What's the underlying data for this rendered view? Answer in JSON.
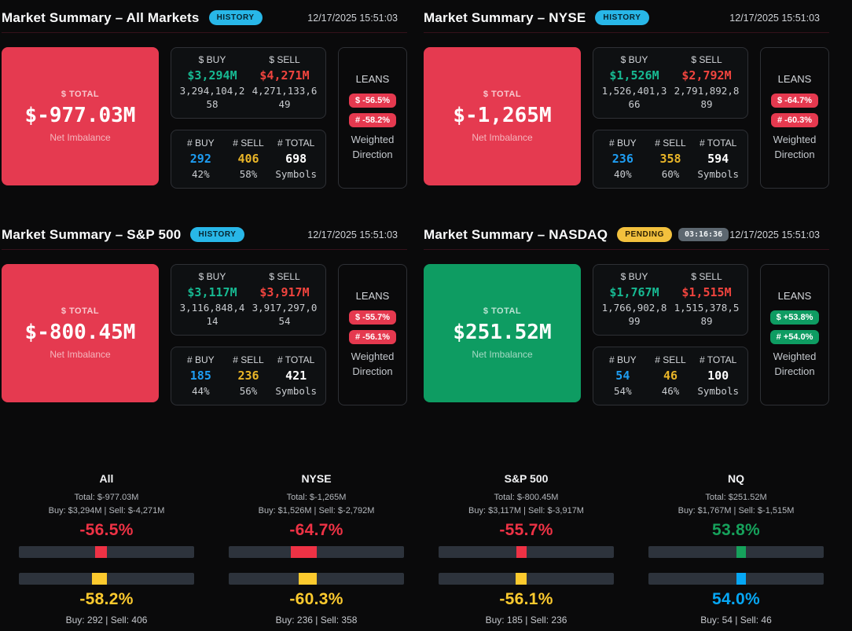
{
  "colors": {
    "card_red": "#e53a50",
    "card_green": "#0e9c62",
    "history_badge": "#28b7e8",
    "pending_badge": "#f3c13d",
    "timer_badge_bg": "#5d6770",
    "buy_dollar_text": "#17b992",
    "sell_dollar_text": "#f0443e",
    "buy_count_text": "#1e9df2",
    "sell_count_text": "#e9b528",
    "bottom_red": "#ee3245",
    "bottom_yellow": "#fcca2e",
    "bottom_green": "#16a15b",
    "bottom_blue": "#06a7f5",
    "gauge_track": "#2d333c"
  },
  "panels": [
    {
      "title": "Market Summary – All Markets",
      "badge": "HISTORY",
      "badge_variant": "history",
      "timer": "",
      "timestamp": "12/17/2025 15:51:03",
      "total": {
        "label": "$ TOTAL",
        "value": "$-977.03M",
        "sub": "Net Imbalance",
        "variant": "neg"
      },
      "dollar": {
        "buy_label": "$ BUY",
        "buy": "$3,294M",
        "buy_full": "3,294,104,258",
        "sell_label": "$ SELL",
        "sell": "$4,271M",
        "sell_full": "4,271,133,649"
      },
      "counts": {
        "buy_label": "# BUY",
        "buy": "292",
        "buy_pct": "42%",
        "sell_label": "# SELL",
        "sell": "406",
        "sell_pct": "58%",
        "total_label": "# TOTAL",
        "total": "698",
        "total_sub": "Symbols"
      },
      "leans": {
        "label": "LEANS",
        "dollar": "$ -56.5%",
        "num": "# -58.2%",
        "variant": "neg",
        "footer": "Weighted Direction"
      }
    },
    {
      "title": "Market Summary – NYSE",
      "badge": "HISTORY",
      "badge_variant": "history",
      "timer": "",
      "timestamp": "12/17/2025 15:51:03",
      "total": {
        "label": "$ TOTAL",
        "value": "$-1,265M",
        "sub": "Net Imbalance",
        "variant": "neg"
      },
      "dollar": {
        "buy_label": "$ BUY",
        "buy": "$1,526M",
        "buy_full": "1,526,401,366",
        "sell_label": "$ SELL",
        "sell": "$2,792M",
        "sell_full": "2,791,892,889"
      },
      "counts": {
        "buy_label": "# BUY",
        "buy": "236",
        "buy_pct": "40%",
        "sell_label": "# SELL",
        "sell": "358",
        "sell_pct": "60%",
        "total_label": "# TOTAL",
        "total": "594",
        "total_sub": "Symbols"
      },
      "leans": {
        "label": "LEANS",
        "dollar": "$ -64.7%",
        "num": "# -60.3%",
        "variant": "neg",
        "footer": "Weighted Direction"
      }
    },
    {
      "title": "Market Summary – S&P 500",
      "badge": "HISTORY",
      "badge_variant": "history",
      "timer": "",
      "timestamp": "12/17/2025 15:51:03",
      "total": {
        "label": "$ TOTAL",
        "value": "$-800.45M",
        "sub": "Net Imbalance",
        "variant": "neg"
      },
      "dollar": {
        "buy_label": "$ BUY",
        "buy": "$3,117M",
        "buy_full": "3,116,848,414",
        "sell_label": "$ SELL",
        "sell": "$3,917M",
        "sell_full": "3,917,297,054"
      },
      "counts": {
        "buy_label": "# BUY",
        "buy": "185",
        "buy_pct": "44%",
        "sell_label": "# SELL",
        "sell": "236",
        "sell_pct": "56%",
        "total_label": "# TOTAL",
        "total": "421",
        "total_sub": "Symbols"
      },
      "leans": {
        "label": "LEANS",
        "dollar": "$ -55.7%",
        "num": "# -56.1%",
        "variant": "neg",
        "footer": "Weighted Direction"
      }
    },
    {
      "title": "Market Summary – NASDAQ",
      "badge": "PENDING",
      "badge_variant": "pending",
      "timer": "03:16:36",
      "timestamp": "12/17/2025 15:51:03",
      "total": {
        "label": "$ TOTAL",
        "value": "$251.52M",
        "sub": "Net Imbalance",
        "variant": "pos"
      },
      "dollar": {
        "buy_label": "$ BUY",
        "buy": "$1,767M",
        "buy_full": "1,766,902,899",
        "sell_label": "$ SELL",
        "sell": "$1,515M",
        "sell_full": "1,515,378,589"
      },
      "counts": {
        "buy_label": "# BUY",
        "buy": "54",
        "buy_pct": "54%",
        "sell_label": "# SELL",
        "sell": "46",
        "sell_pct": "46%",
        "total_label": "# TOTAL",
        "total": "100",
        "total_sub": "Symbols"
      },
      "leans": {
        "label": "LEANS",
        "dollar": "$ +53.8%",
        "num": "# +54.0%",
        "variant": "pos",
        "footer": "Weighted Direction"
      }
    }
  ],
  "bottom": {
    "markets": [
      {
        "name": "All",
        "total": "Total: $-977.03M",
        "buysell": "Buy: $3,294M | Sell: $-4,271M",
        "d_pct": "-56.5%",
        "d_lean": -56.5,
        "d_color": "#ee3245",
        "n_pct": "-58.2%",
        "n_lean": -58.2,
        "n_color": "#fcca2e",
        "counts": "Buy: 292 | Sell: 406"
      },
      {
        "name": "NYSE",
        "total": "Total: $-1,265M",
        "buysell": "Buy: $1,526M | Sell: $-2,792M",
        "d_pct": "-64.7%",
        "d_lean": -64.7,
        "d_color": "#ee3245",
        "n_pct": "-60.3%",
        "n_lean": -60.3,
        "n_color": "#fcca2e",
        "counts": "Buy: 236 | Sell: 358"
      },
      {
        "name": "S&P 500",
        "total": "Total: $-800.45M",
        "buysell": "Buy: $3,117M | Sell: $-3,917M",
        "d_pct": "-55.7%",
        "d_lean": -55.7,
        "d_color": "#ee3245",
        "n_pct": "-56.1%",
        "n_lean": -56.1,
        "n_color": "#fcca2e",
        "counts": "Buy: 185 | Sell: 236"
      },
      {
        "name": "NQ",
        "total": "Total: $251.52M",
        "buysell": "Buy: $1,767M | Sell: $-1,515M",
        "d_pct": "53.8%",
        "d_lean": 53.8,
        "d_color": "#16a15b",
        "n_pct": "54.0%",
        "n_lean": 54.0,
        "n_color": "#06a7f5",
        "counts": "Buy: 54 | Sell: 46"
      }
    ]
  }
}
